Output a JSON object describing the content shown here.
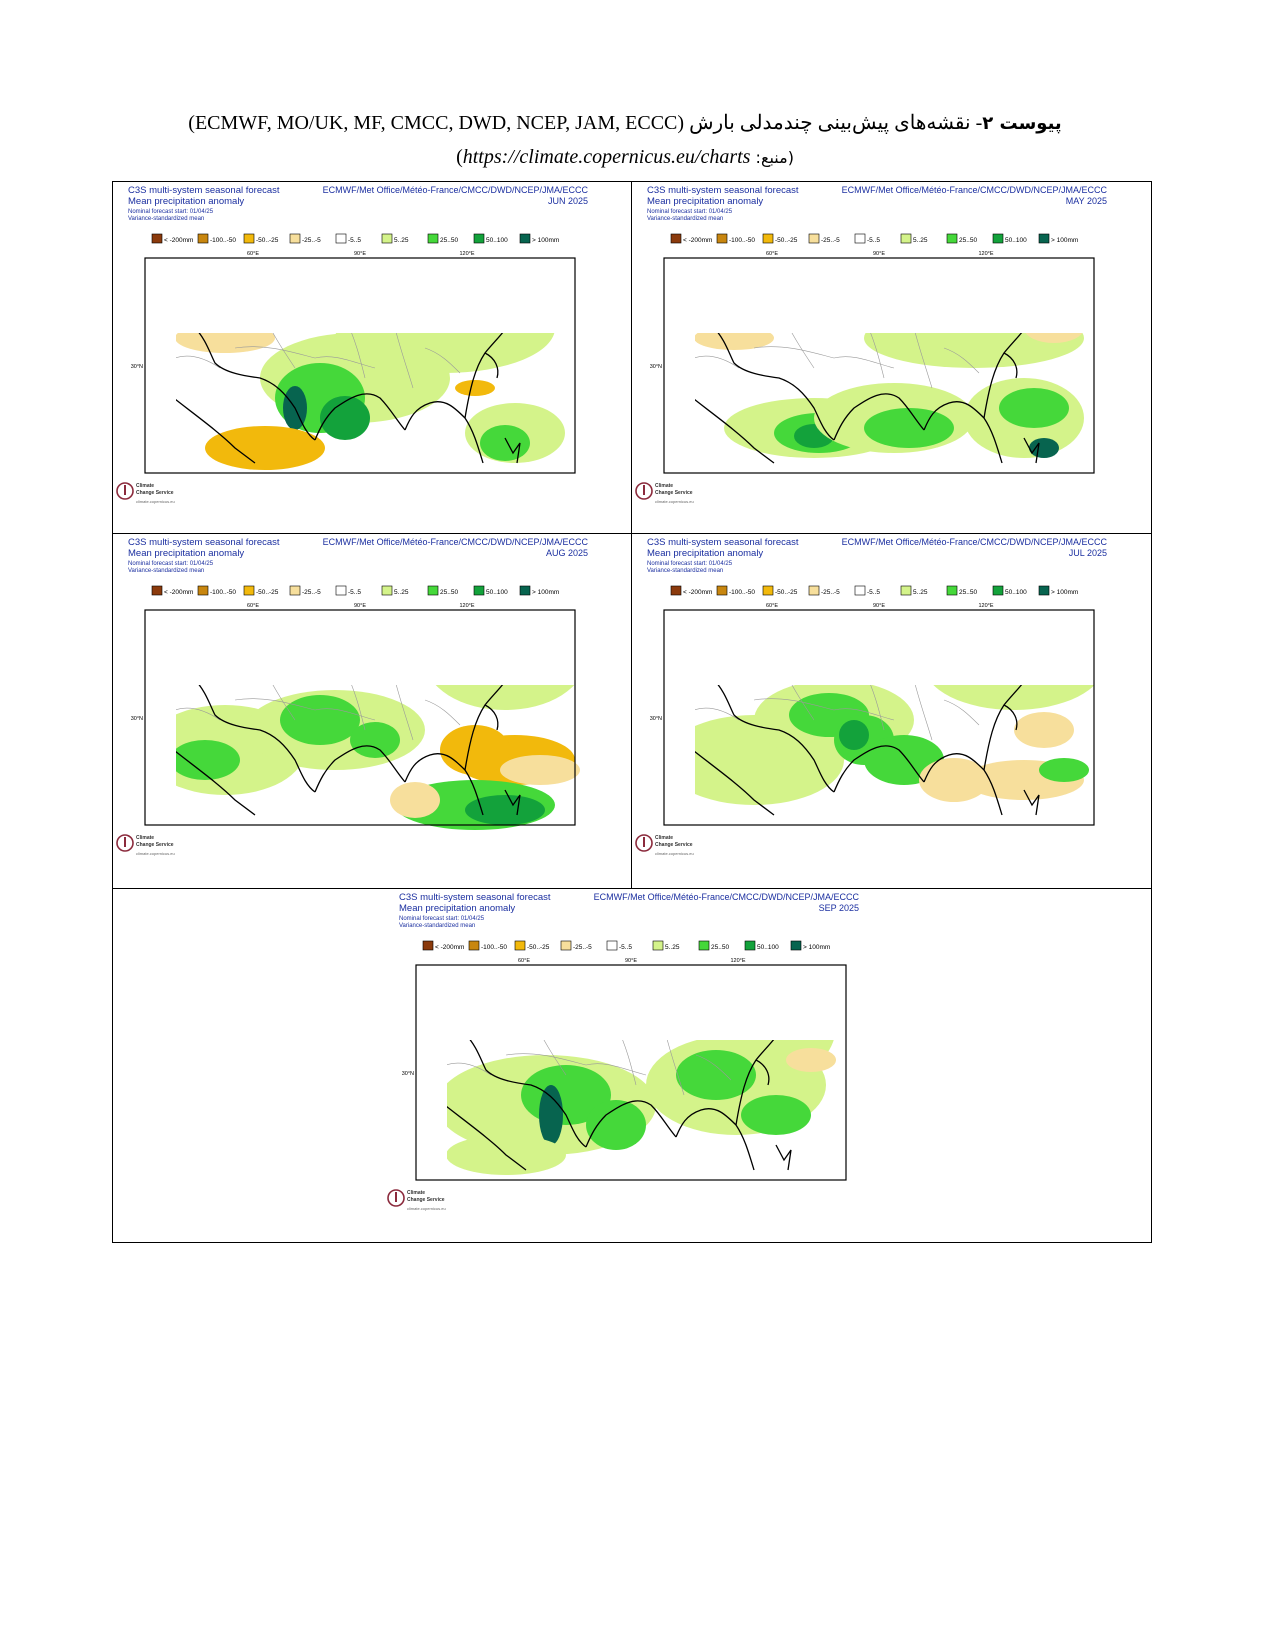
{
  "caption": {
    "bold": "پیوست ۲",
    "persian": "- نقشه‌های پیش‌بینی چندمدلی بارش ",
    "models": "(ECMWF, MO/UK, MF, CMCC, DWD, NCEP, JAM, ECCC)",
    "source_label": "(منبع: ",
    "source_url": "https://climate.copernicus.eu/charts",
    "source_close": ")"
  },
  "panel_common": {
    "title_line1": "C3S multi-system seasonal forecast",
    "title_line2": "Mean precipitation anomaly",
    "title_line3": "Nominal forecast start: 01/04/25",
    "title_line4": "Variance-standardized mean",
    "producers": "ECMWF/Met Office/Météo-France/CMCC/DWD/NCEP/JMA/ECCC",
    "legend": [
      "< -200mm",
      "-100..-50",
      "-50..-25",
      "-25..-5",
      "-5..5",
      "5..25",
      "25..50",
      "50..100",
      "> 100mm"
    ],
    "legend_colors": [
      "#8b3a0c",
      "#c8860f",
      "#f2b90c",
      "#f7df9c",
      "#ffffff",
      "#d4f38a",
      "#45d83a",
      "#13a23b",
      "#07644f"
    ],
    "lon_labels": [
      "60°E",
      "90°E",
      "120°E"
    ],
    "lat_label": "30°N",
    "logo_line1": "Climate",
    "logo_line2": "Change Service",
    "logo_url": "climate.copernicus.eu"
  },
  "panels": [
    {
      "month": "JUN 2025"
    },
    {
      "month": "MAY 2025"
    },
    {
      "month": "AUG 2025"
    },
    {
      "month": "JUL 2025"
    },
    {
      "month": "SEP 2025"
    }
  ]
}
